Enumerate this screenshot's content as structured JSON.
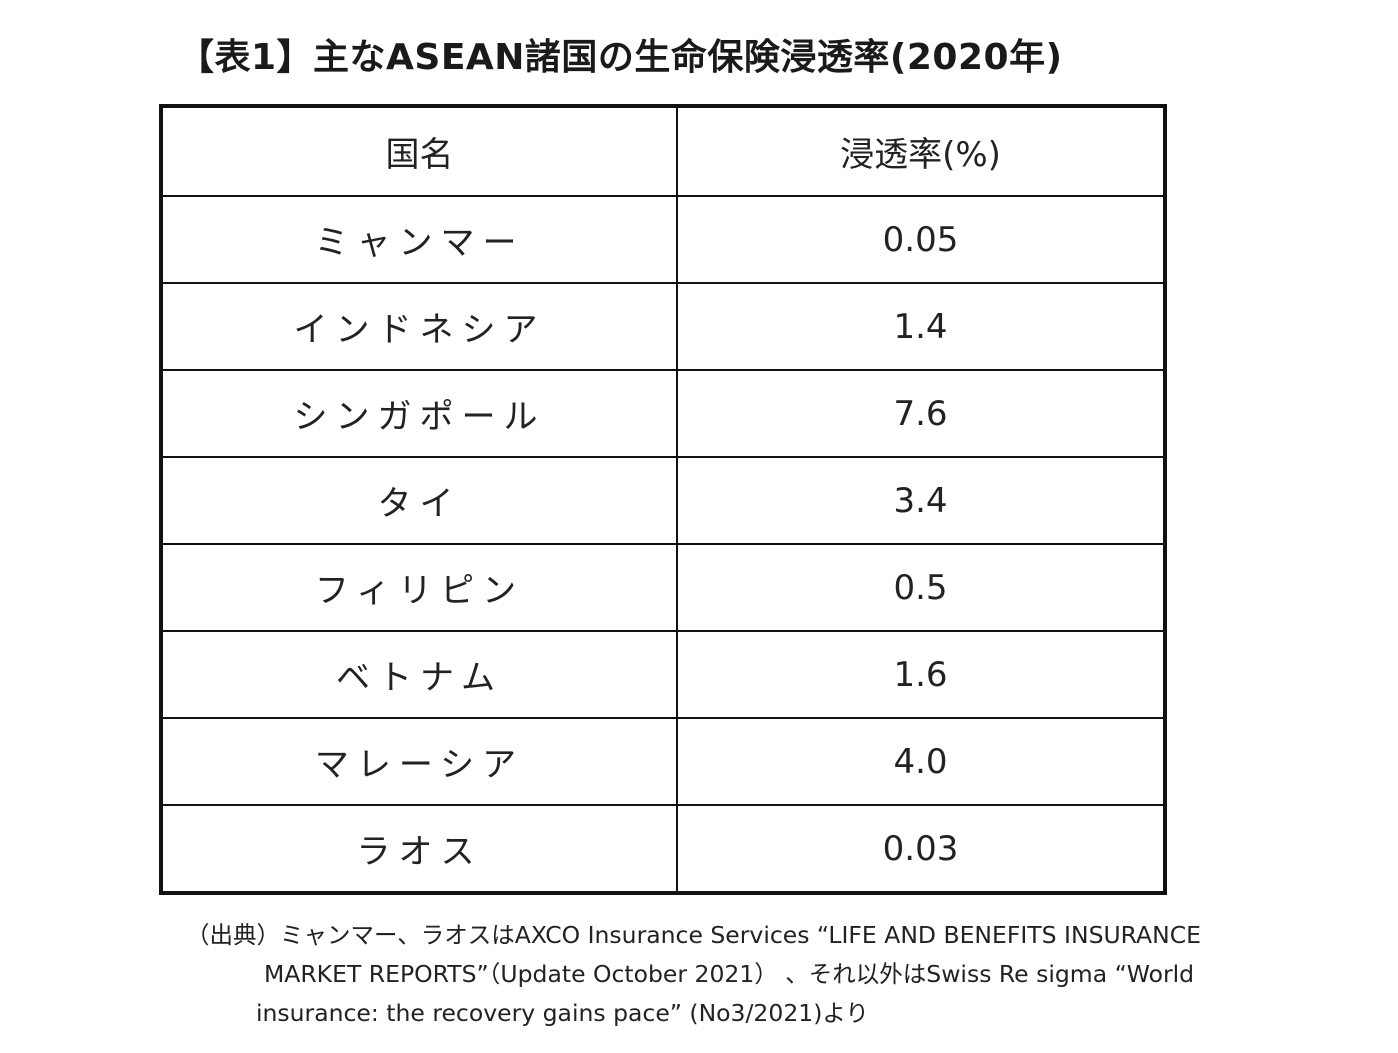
{
  "title": "【表1】主なASEAN諸国の生命保険浸透率(2020年)",
  "table": {
    "headers": [
      "国名",
      "浸透率(%)"
    ],
    "rows": [
      {
        "country": "ミャンマー",
        "rate": "0.05"
      },
      {
        "country": "インドネシア",
        "rate": "1.4"
      },
      {
        "country": "シンガポール",
        "rate": "7.6"
      },
      {
        "country": "タイ",
        "rate": "3.4"
      },
      {
        "country": "フィリピン",
        "rate": "0.5"
      },
      {
        "country": "ベトナム",
        "rate": "1.6"
      },
      {
        "country": "マレーシア",
        "rate": "4.0"
      },
      {
        "country": "ラオス",
        "rate": "0.03"
      }
    ]
  },
  "source": {
    "line1": "（出典）ミャンマー、ラオスはAXCO Insurance Services “LIFE AND BENEFITS INSURANCE",
    "line2": "MARKET REPORTS”（Update October 2021） 、それ以外はSwiss Re sigma “World",
    "line3": "insurance: the recovery gains pace” (No3/2021)より"
  }
}
